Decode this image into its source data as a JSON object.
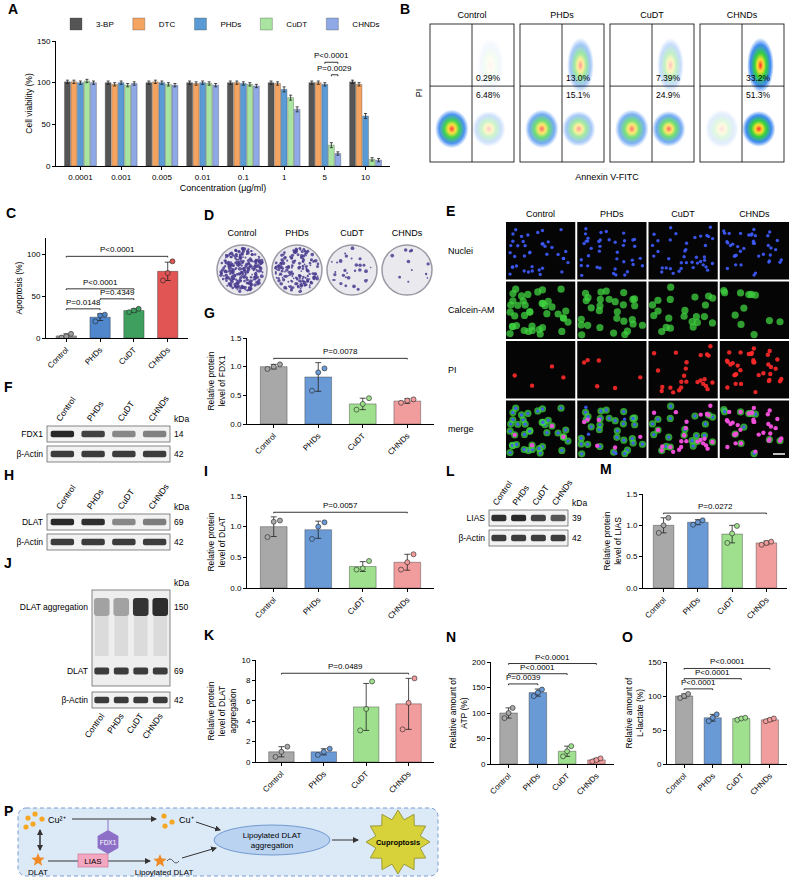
{
  "chart_data": [
    {
      "panel": "A",
      "type": "bar",
      "x_label": "Concentration (μg/ml)",
      "y_label": "Cell viability (%)",
      "categories": [
        "0.0001",
        "0.001",
        "0.005",
        "0.01",
        "0.1",
        "1",
        "5",
        "10"
      ],
      "series": [
        {
          "name": "3-BP",
          "color": "#555555",
          "values": [
            101,
            100,
            100,
            100,
            100,
            100,
            100,
            101
          ],
          "errors": [
            2,
            2,
            2,
            2,
            2,
            2,
            2,
            2
          ]
        },
        {
          "name": "DTC",
          "color": "#f4a460",
          "values": [
            101,
            98,
            101,
            99,
            100,
            99,
            100,
            98
          ],
          "errors": [
            2,
            2,
            2,
            2,
            2,
            2,
            2,
            2
          ]
        },
        {
          "name": "PHDs",
          "color": "#5b9bd5",
          "values": [
            100,
            100,
            100,
            100,
            99,
            92,
            98,
            60
          ],
          "errors": [
            2,
            2,
            2,
            2,
            2,
            3,
            2,
            3
          ]
        },
        {
          "name": "CuDT",
          "color": "#a9e5a0",
          "values": [
            102,
            97,
            98,
            99,
            98,
            82,
            25,
            8
          ],
          "errors": [
            2,
            2,
            2,
            2,
            2,
            3,
            3,
            2
          ]
        },
        {
          "name": "CHNDs",
          "color": "#8fa9e6",
          "values": [
            100,
            99,
            97,
            97,
            96,
            68,
            15,
            7
          ],
          "errors": [
            2,
            2,
            2,
            2,
            2,
            3,
            2,
            2
          ]
        }
      ],
      "ylim": [
        0,
        150
      ],
      "yticks": [
        0,
        50,
        100,
        150
      ],
      "legend": "top",
      "comparisons": [
        {
          "category": "5",
          "pair": [
            "CuDT",
            "CHNDs"
          ],
          "label": "P=0.0029"
        },
        {
          "category": "5",
          "pair": [
            "PHDs",
            "CHNDs"
          ],
          "label": "P<0.0001"
        }
      ]
    },
    {
      "panel": "C",
      "type": "bar",
      "y_label": "Apoptosis (%)",
      "categories": [
        "Control",
        "PHDs",
        "CuDT",
        "CHNDs"
      ],
      "values": [
        2.5,
        25,
        33,
        80
      ],
      "errors": [
        2.5,
        4,
        2,
        11
      ],
      "points": [
        [
          0.5,
          2,
          5
        ],
        [
          20,
          27,
          28
        ],
        [
          31,
          33,
          35
        ],
        [
          69,
          78,
          92
        ]
      ],
      "colors": [
        "#9e9e9e",
        "#4f86cc",
        "#3f9f5f",
        "#e25555"
      ],
      "ylim": [
        0,
        120
      ],
      "yticks": [
        0,
        50,
        100
      ],
      "comparisons": [
        {
          "pair": [
            "Control",
            "PHDs"
          ],
          "label": "P=0.0148"
        },
        {
          "pair": [
            "PHDs",
            "CuDT"
          ],
          "label": "P=0.4349"
        },
        {
          "pair": [
            "Control",
            "CuDT"
          ],
          "label": "P<0.0001"
        },
        {
          "pair": [
            "Control",
            "CHNDs"
          ],
          "label": "P<0.0001"
        }
      ]
    },
    {
      "panel": "G",
      "type": "bar",
      "y_label": "Relative protein level of FDX1",
      "categories": [
        "Control",
        "PHDs",
        "CuDT",
        "CHNDs"
      ],
      "values": [
        1.0,
        0.82,
        0.35,
        0.4
      ],
      "errors": [
        0.04,
        0.25,
        0.1,
        0.04
      ],
      "points": [
        [
          0.96,
          1.0,
          1.04
        ],
        [
          0.58,
          0.9,
          0.97
        ],
        [
          0.25,
          0.35,
          0.45
        ],
        [
          0.37,
          0.41,
          0.43
        ]
      ],
      "colors": [
        "#a8a8a8",
        "#6a9ad6",
        "#9fe08e",
        "#f29d9d"
      ],
      "ylim": [
        0,
        1.5
      ],
      "yticks": [
        {
          "value": 0,
          "label": "0.0"
        },
        0.5,
        {
          "value": 1,
          "label": "1.0"
        },
        1.5
      ],
      "comparisons": [
        {
          "pair": [
            "Control",
            "CHNDs"
          ],
          "label": "P=0.0078"
        }
      ]
    },
    {
      "panel": "I",
      "type": "bar",
      "y_label": "Relative protein level of DLAT",
      "categories": [
        "Control",
        "PHDs",
        "CuDT",
        "CHNDs"
      ],
      "values": [
        1.0,
        0.95,
        0.35,
        0.42
      ],
      "errors": [
        0.16,
        0.14,
        0.08,
        0.13
      ],
      "points": [
        [
          0.83,
          1.08,
          1.1
        ],
        [
          0.8,
          1.0,
          1.07
        ],
        [
          0.3,
          0.32,
          0.44
        ],
        [
          0.3,
          0.42,
          0.55
        ]
      ],
      "colors": [
        "#a8a8a8",
        "#6a9ad6",
        "#9fe08e",
        "#f29d9d"
      ],
      "ylim": [
        0,
        1.5
      ],
      "yticks": [
        {
          "value": 0,
          "label": "0.0"
        },
        0.5,
        {
          "value": 1,
          "label": "1.0"
        },
        1.5
      ],
      "comparisons": [
        {
          "pair": [
            "Control",
            "CHNDs"
          ],
          "label": "P=0.0057"
        }
      ]
    },
    {
      "panel": "K",
      "type": "bar",
      "y_label": "Relative protein level of DLAT aggregation",
      "categories": [
        "Control",
        "PHDs",
        "CuDT",
        "CHNDs"
      ],
      "values": [
        1.0,
        1.0,
        5.4,
        5.7
      ],
      "errors": [
        0.5,
        0.3,
        2.3,
        2.5
      ],
      "points": [
        [
          0.5,
          1.0,
          1.5
        ],
        [
          0.7,
          1.0,
          1.3
        ],
        [
          3.1,
          5.2,
          7.9
        ],
        [
          3.2,
          5.8,
          8.2
        ]
      ],
      "colors": [
        "#a8a8a8",
        "#6a9ad6",
        "#9fe08e",
        "#f29d9d"
      ],
      "ylim": [
        0,
        10
      ],
      "yticks": [
        0,
        2,
        4,
        6,
        8,
        10
      ],
      "comparisons": [
        {
          "pair": [
            "Control",
            "CHNDs"
          ],
          "label": "P=0.0489"
        }
      ]
    },
    {
      "panel": "M",
      "type": "bar",
      "y_label": "Relative protein level of LIAS",
      "categories": [
        "Control",
        "PHDs",
        "CuDT",
        "CHNDs"
      ],
      "values": [
        1.0,
        1.05,
        0.86,
        0.72
      ],
      "errors": [
        0.12,
        0.04,
        0.14,
        0.03
      ],
      "points": [
        [
          0.88,
          1.0,
          1.12
        ],
        [
          1.01,
          1.05,
          1.08
        ],
        [
          0.72,
          0.87,
          0.99
        ],
        [
          0.69,
          0.72,
          0.74
        ]
      ],
      "colors": [
        "#a8a8a8",
        "#6a9ad6",
        "#9fe08e",
        "#f29d9d"
      ],
      "ylim": [
        0,
        1.5
      ],
      "yticks": [
        {
          "value": 0,
          "label": "0.0"
        },
        0.5,
        {
          "value": 1,
          "label": "1.0"
        },
        1.5
      ],
      "comparisons": [
        {
          "pair": [
            "Control",
            "CHNDs"
          ],
          "label": "P=0.0272"
        }
      ]
    },
    {
      "panel": "N",
      "type": "bar",
      "y_label": "Relative amount of ATP (%)",
      "categories": [
        "Control",
        "PHDs",
        "CuDT",
        "CHNDs"
      ],
      "values": [
        100,
        140,
        25,
        8
      ],
      "errors": [
        10,
        7,
        10,
        3
      ],
      "points": [
        [
          90,
          100,
          110
        ],
        [
          133,
          140,
          146
        ],
        [
          15,
          25,
          35
        ],
        [
          5,
          8,
          11
        ]
      ],
      "colors": [
        "#a8a8a8",
        "#6a9ad6",
        "#9fe08e",
        "#f29d9d"
      ],
      "ylim": [
        0,
        200
      ],
      "yticks": [
        0,
        50,
        100,
        150,
        200
      ],
      "comparisons": [
        {
          "pair": [
            "Control",
            "PHDs"
          ],
          "label": "P=0.0039"
        },
        {
          "pair": [
            "Control",
            "CuDT"
          ],
          "label": "P<0.0001"
        },
        {
          "pair": [
            "Control",
            "CHNDs"
          ],
          "label": "P<0.0001"
        }
      ]
    },
    {
      "panel": "O",
      "type": "bar",
      "y_label": "Relative amount of L-lactate (%)",
      "categories": [
        "Control",
        "PHDs",
        "CuDT",
        "CHNDs"
      ],
      "values": [
        100,
        68,
        67,
        65
      ],
      "errors": [
        3,
        5,
        1.5,
        2
      ],
      "points": [
        [
          97,
          100,
          103
        ],
        [
          63,
          68,
          73
        ],
        [
          65,
          67,
          68
        ],
        [
          63,
          65,
          67
        ]
      ],
      "colors": [
        "#a8a8a8",
        "#6a9ad6",
        "#9fe08e",
        "#f29d9d"
      ],
      "ylim": [
        0,
        150
      ],
      "yticks": [
        0,
        50,
        100,
        150
      ],
      "comparisons": [
        {
          "pair": [
            "Control",
            "PHDs"
          ],
          "label": "P<0.0001"
        },
        {
          "pair": [
            "Control",
            "CuDT"
          ],
          "label": "P<0.0001"
        },
        {
          "pair": [
            "Control",
            "CHNDs"
          ],
          "label": "P<0.0001"
        }
      ]
    }
  ],
  "flow_cytometry": {
    "panel": "B",
    "x_label": "Annexin V-FITC",
    "y_label": "PI",
    "plots": [
      {
        "title": "Control",
        "q2": "0.29%",
        "q3": "6.48%"
      },
      {
        "title": "PHDs",
        "q2": "13.0%",
        "q3": "15.1%"
      },
      {
        "title": "CuDT",
        "q2": "7.39%",
        "q3": "24.9%"
      },
      {
        "title": "CHNDs",
        "q2": "33.2%",
        "q3": "51.3%"
      }
    ]
  },
  "colony_formation": {
    "panel": "D",
    "titles": [
      "Control",
      "PHDs",
      "CuDT",
      "CHNDs"
    ]
  },
  "live_dead_imaging": {
    "panel": "E",
    "columns": [
      "Control",
      "PHDs",
      "CuDT",
      "CHNDs"
    ],
    "rows": [
      "Nuclei",
      "Calcein-AM",
      "PI",
      "merge"
    ]
  },
  "blots": [
    {
      "panel": "F",
      "lanes": [
        "Control",
        "PHDs",
        "CuDT",
        "CHNDs"
      ],
      "unit": "kDa",
      "bands": [
        {
          "label": "FDX1",
          "kda": 14
        },
        {
          "label": "β-Actin",
          "kda": 42
        }
      ]
    },
    {
      "panel": "H",
      "lanes": [
        "Control",
        "PHDs",
        "CuDT",
        "CHNDs"
      ],
      "unit": "kDa",
      "bands": [
        {
          "label": "DLAT",
          "kda": 69
        },
        {
          "label": "β-Actin",
          "kda": 42
        }
      ]
    },
    {
      "panel": "J",
      "lanes": [
        "Control",
        "PHDs",
        "CuDT",
        "CHNDs"
      ],
      "unit": "kDa",
      "bands": [
        {
          "label": "DLAT aggregation",
          "kda": 150
        },
        {
          "label": "DLAT",
          "kda": 69
        },
        {
          "label": "β-Actin",
          "kda": 42
        }
      ]
    },
    {
      "panel": "L",
      "lanes": [
        "Control",
        "PHDs",
        "CuDT",
        "CHNDs"
      ],
      "unit": "kDa",
      "bands": [
        {
          "label": "LIAS",
          "kda": 39
        },
        {
          "label": "β-Actin",
          "kda": 42
        }
      ]
    }
  ],
  "diagram": {
    "panel": "P",
    "labels": {
      "cu2": "Cu²⁺",
      "cu1": "Cu⁺",
      "fdx1": "FDX1",
      "dlat": "DLAT",
      "lias": "LIAS",
      "aggregation": "Lipoylated DLAT aggregation",
      "lipoylated": "Lipoylated DLAT",
      "cuproptosis": "Cuproptosis"
    }
  }
}
